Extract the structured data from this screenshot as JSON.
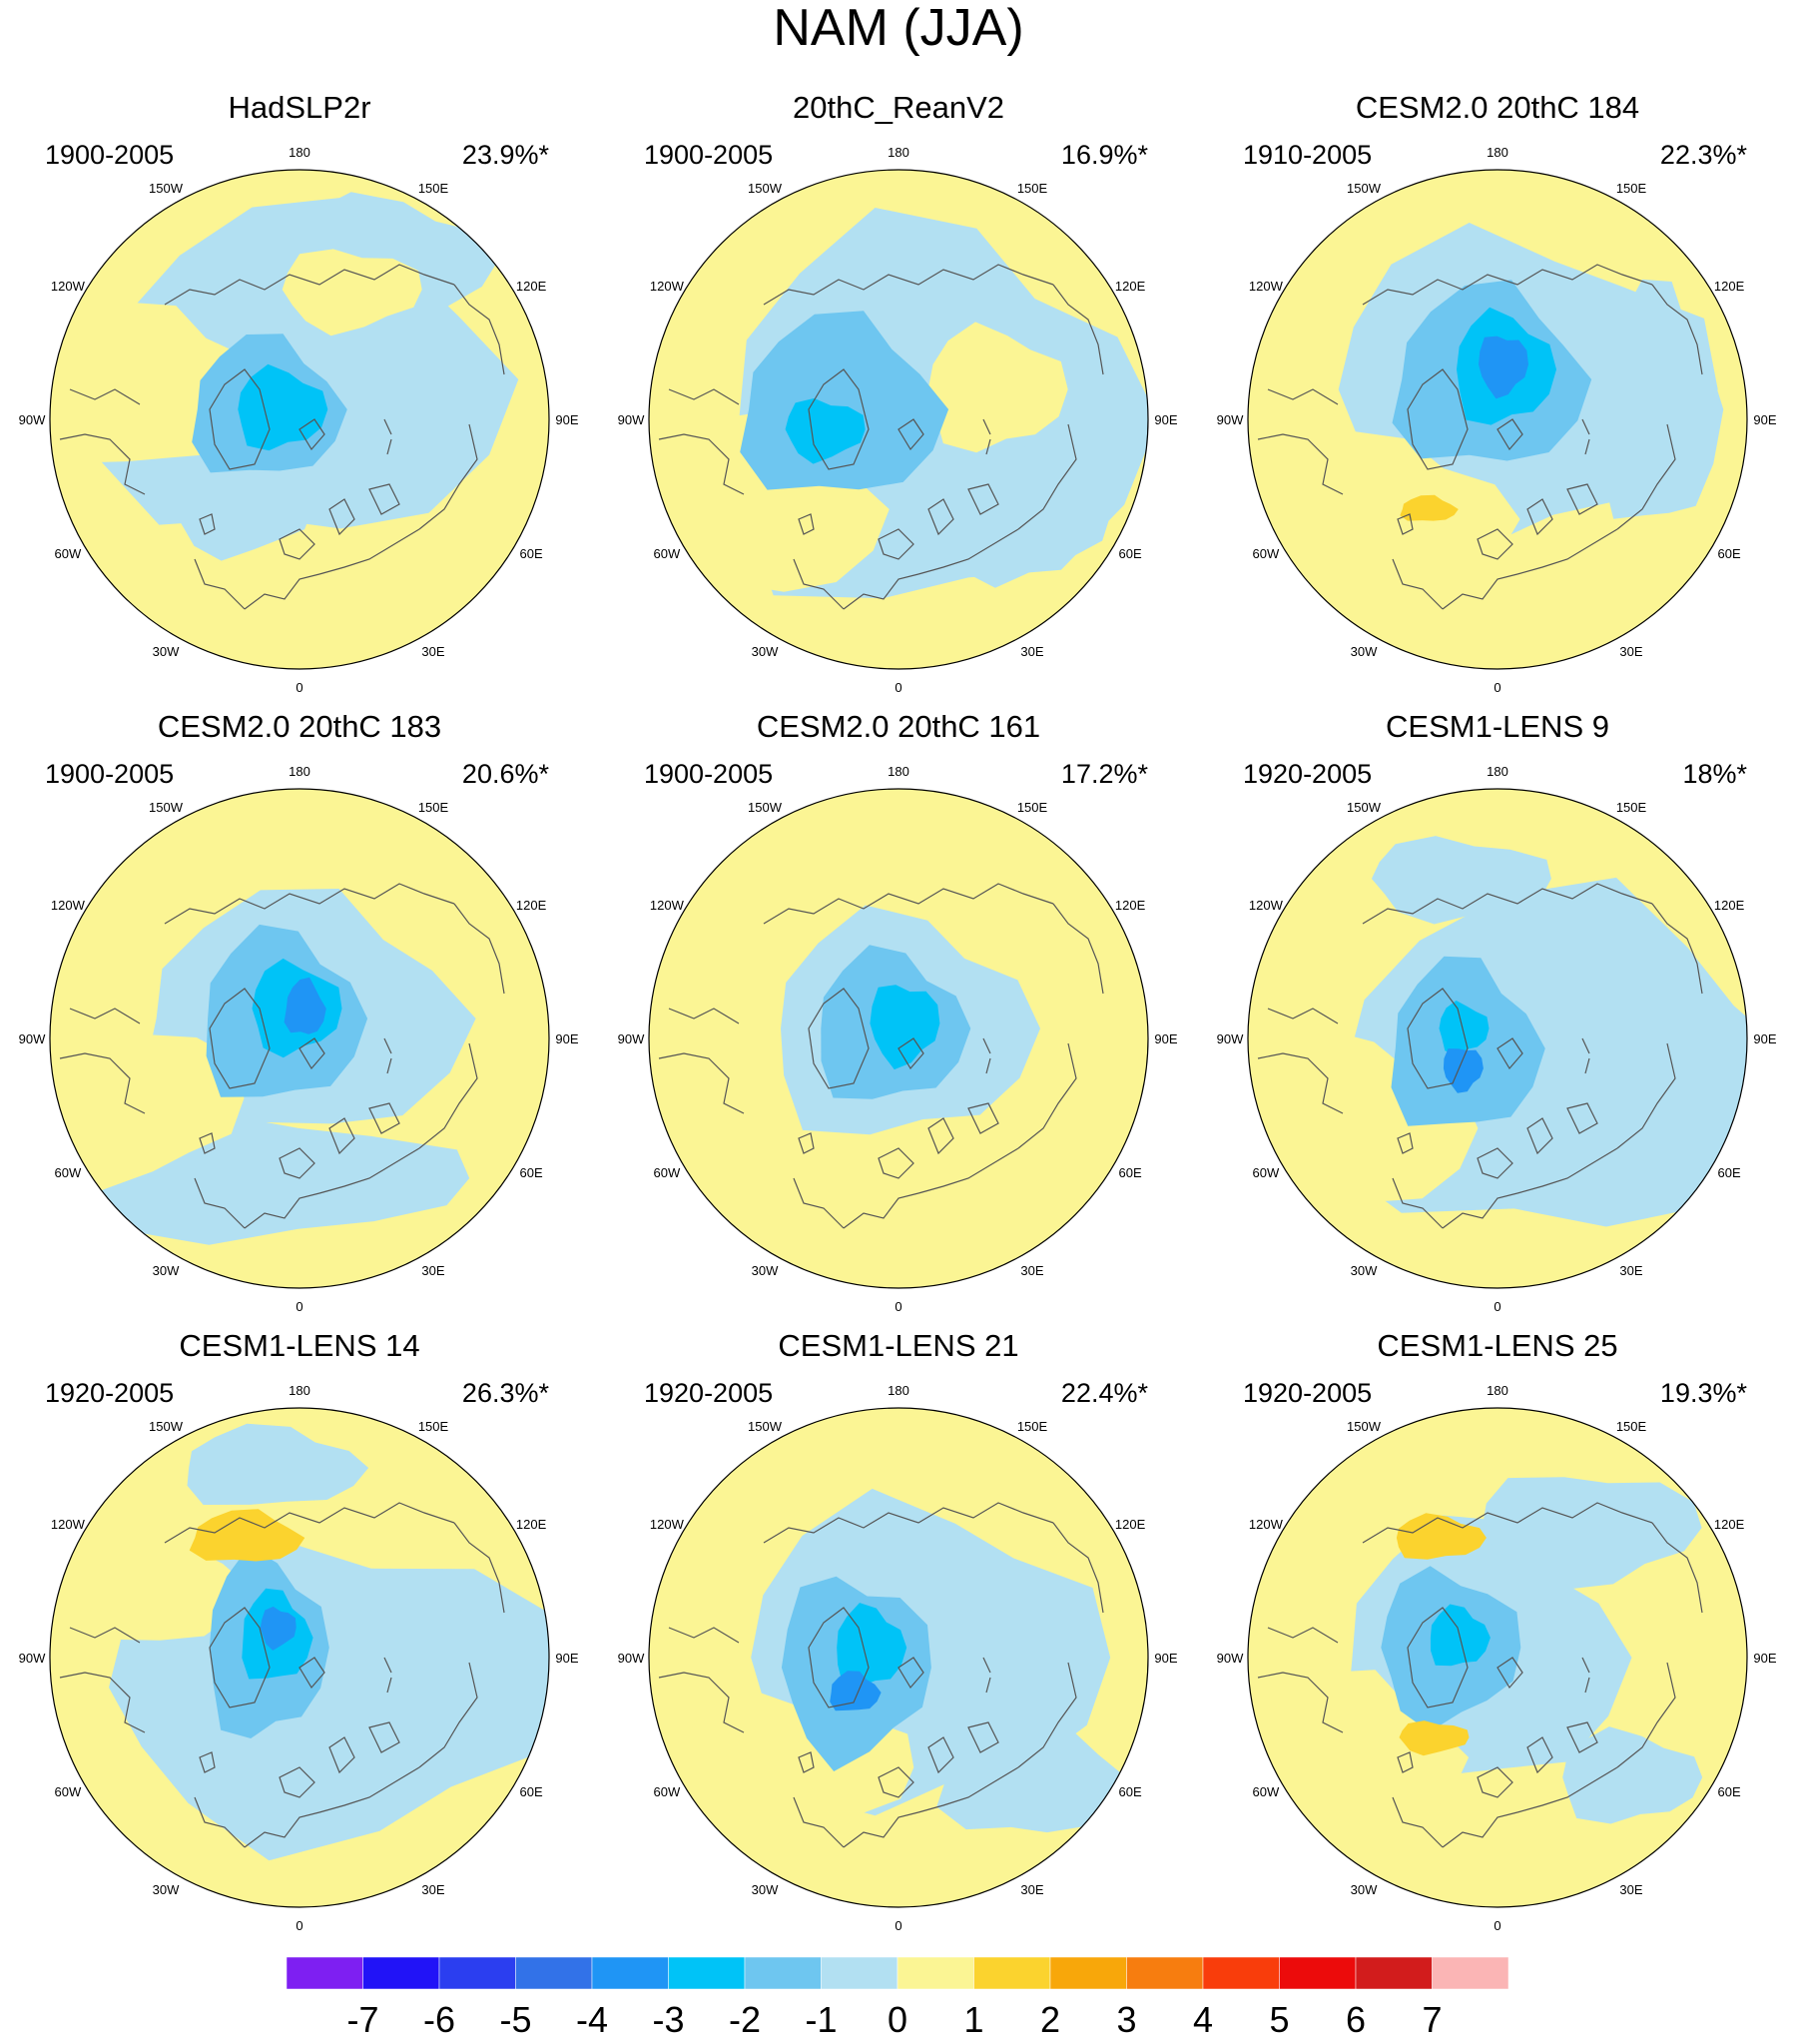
{
  "title": "NAM (JJA)",
  "lon_labels": [
    "180",
    "150E",
    "120E",
    "90E",
    "60E",
    "30E",
    "0",
    "30W",
    "60W",
    "90W",
    "120W",
    "150W"
  ],
  "panels": [
    {
      "title": "HadSLP2r",
      "period": "1900-2005",
      "pct": "23.9%*"
    },
    {
      "title": "20thC_ReanV2",
      "period": "1900-2005",
      "pct": "16.9%*"
    },
    {
      "title": "CESM2.0 20thC 184",
      "period": "1910-2005",
      "pct": "22.3%*"
    },
    {
      "title": "CESM2.0 20thC 183",
      "period": "1900-2005",
      "pct": "20.6%*"
    },
    {
      "title": "CESM2.0 20thC 161",
      "period": "1900-2005",
      "pct": "17.2%*"
    },
    {
      "title": "CESM1-LENS 9",
      "period": "1920-2005",
      "pct": "18%*"
    },
    {
      "title": "CESM1-LENS 14",
      "period": "1920-2005",
      "pct": "26.3%*"
    },
    {
      "title": "CESM1-LENS 21",
      "period": "1920-2005",
      "pct": "22.4%*"
    },
    {
      "title": "CESM1-LENS 25",
      "period": "1920-2005",
      "pct": "19.3%*"
    }
  ],
  "chart_data": {
    "type": "heatmap",
    "title": "NAM (JJA)",
    "projection": "north-polar-stereographic",
    "colorbar": {
      "labels": [
        "-7",
        "-6",
        "-5",
        "-4",
        "-3",
        "-2",
        "-1",
        "0",
        "1",
        "2",
        "3",
        "4",
        "5",
        "6",
        "7"
      ],
      "colors": [
        "#7e1ff2",
        "#2113f7",
        "#2b3ef0",
        "#3272e8",
        "#1f95f5",
        "#00c3f7",
        "#6ec6f0",
        "#b2e0f2",
        "#fbf594",
        "#fbd32e",
        "#f8a70a",
        "#f77d0f",
        "#f93d0b",
        "#ec0b0b",
        "#d21c1c",
        "#fbb5b5"
      ]
    },
    "panels": [
      {
        "title": "HadSLP2r",
        "period": "1900-2005",
        "explained_variance_pct": 23.9,
        "significant": true,
        "min_level": -3
      },
      {
        "title": "20thC_ReanV2",
        "period": "1900-2005",
        "explained_variance_pct": 16.9,
        "significant": true,
        "min_level": -3
      },
      {
        "title": "CESM2.0 20thC 184",
        "period": "1910-2005",
        "explained_variance_pct": 22.3,
        "significant": true,
        "min_level": -4
      },
      {
        "title": "CESM2.0 20thC 183",
        "period": "1900-2005",
        "explained_variance_pct": 20.6,
        "significant": true,
        "min_level": -4
      },
      {
        "title": "CESM2.0 20thC 161",
        "period": "1900-2005",
        "explained_variance_pct": 17.2,
        "significant": true,
        "min_level": -3
      },
      {
        "title": "CESM1-LENS 9",
        "period": "1920-2005",
        "explained_variance_pct": 18,
        "significant": true,
        "min_level": -3
      },
      {
        "title": "CESM1-LENS 14",
        "period": "1920-2005",
        "explained_variance_pct": 26.3,
        "significant": true,
        "min_level": -4
      },
      {
        "title": "CESM1-LENS 21",
        "period": "1920-2005",
        "explained_variance_pct": 22.4,
        "significant": true,
        "min_level": -3
      },
      {
        "title": "CESM1-LENS 25",
        "period": "1920-2005",
        "explained_variance_pct": 19.3,
        "significant": true,
        "min_level": -3
      }
    ]
  }
}
